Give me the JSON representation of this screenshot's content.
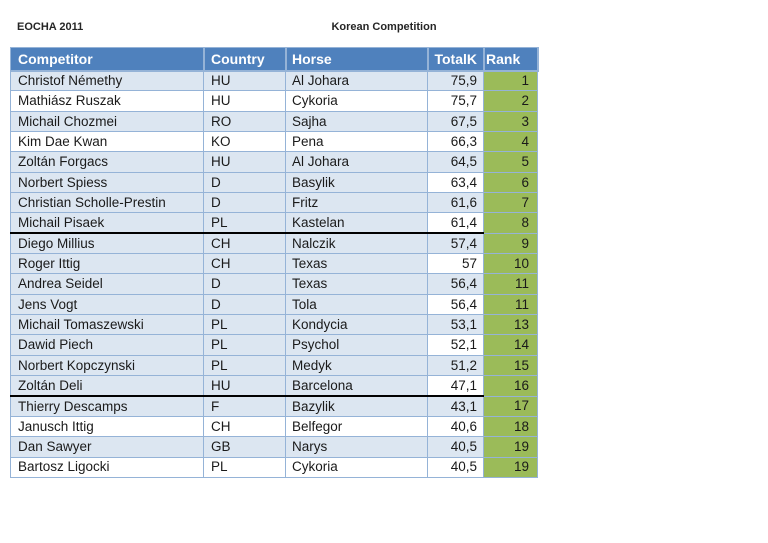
{
  "page": {
    "header_left": "EOCHA 2011",
    "title": "Korean Competition"
  },
  "colors": {
    "header_bg": "#4F81BD",
    "header_text": "#FFFFFF",
    "band_blue": "#DCE6F1",
    "band_white": "#FFFFFF",
    "rank_green": "#9BBB59",
    "grid_border": "#95B3D7",
    "divider_black": "#000000",
    "body_text": "#1A1A1A"
  },
  "table": {
    "columns": [
      {
        "key": "competitor",
        "label": "Competitor"
      },
      {
        "key": "country",
        "label": "Country"
      },
      {
        "key": "horse",
        "label": "Horse"
      },
      {
        "key": "total",
        "label": "TotalK"
      },
      {
        "key": "rank",
        "label": "Rank"
      }
    ],
    "rows": [
      {
        "competitor": "Christof Némethy",
        "country": "HU",
        "horse": "Al Johara",
        "total": "75,9",
        "rank": "1",
        "band": "blue",
        "total_band": "blue",
        "divider_after": false
      },
      {
        "competitor": "Mathiász Ruszak",
        "country": "HU",
        "horse": "Cykoria",
        "total": "75,7",
        "rank": "2",
        "band": "white",
        "total_band": "white",
        "divider_after": false
      },
      {
        "competitor": "Michail Chozmei",
        "country": "RO",
        "horse": "Sajha",
        "total": "67,5",
        "rank": "3",
        "band": "blue",
        "total_band": "blue",
        "divider_after": false
      },
      {
        "competitor": "Kim Dae Kwan",
        "country": "KO",
        "horse": "Pena",
        "total": "66,3",
        "rank": "4",
        "band": "white",
        "total_band": "white",
        "divider_after": false
      },
      {
        "competitor": "Zoltán Forgacs",
        "country": "HU",
        "horse": "Al Johara",
        "total": "64,5",
        "rank": "5",
        "band": "blue",
        "total_band": "blue",
        "divider_after": false
      },
      {
        "competitor": "Norbert Spiess",
        "country": "D",
        "horse": "Basylik",
        "total": "63,4",
        "rank": "6",
        "band": "blue",
        "total_band": "white",
        "divider_after": false
      },
      {
        "competitor": "Christian Scholle-Prestin",
        "country": "D",
        "horse": "Fritz",
        "total": "61,6",
        "rank": "7",
        "band": "blue",
        "total_band": "blue",
        "divider_after": false
      },
      {
        "competitor": "Michail Pisaek",
        "country": "PL",
        "horse": "Kastelan",
        "total": "61,4",
        "rank": "8",
        "band": "blue",
        "total_band": "white",
        "divider_after": true
      },
      {
        "competitor": "Diego Millius",
        "country": "CH",
        "horse": "Nalczik",
        "total": "57,4",
        "rank": "9",
        "band": "blue",
        "total_band": "blue",
        "divider_after": false
      },
      {
        "competitor": "Roger Ittig",
        "country": "CH",
        "horse": "Texas",
        "total": "57",
        "rank": "10",
        "band": "blue",
        "total_band": "white",
        "divider_after": false
      },
      {
        "competitor": "Andrea Seidel",
        "country": "D",
        "horse": "Texas",
        "total": "56,4",
        "rank": "11",
        "band": "blue",
        "total_band": "blue",
        "divider_after": false
      },
      {
        "competitor": "Jens Vogt",
        "country": "D",
        "horse": "Tola",
        "total": "56,4",
        "rank": "11",
        "band": "blue",
        "total_band": "white",
        "divider_after": false
      },
      {
        "competitor": "Michail Tomaszewski",
        "country": "PL",
        "horse": "Kondycia",
        "total": "53,1",
        "rank": "13",
        "band": "blue",
        "total_band": "blue",
        "divider_after": false
      },
      {
        "competitor": "Dawid Piech",
        "country": "PL",
        "horse": "Psychol",
        "total": "52,1",
        "rank": "14",
        "band": "blue",
        "total_band": "white",
        "divider_after": false
      },
      {
        "competitor": "Norbert Kopczynski",
        "country": "PL",
        "horse": "Medyk",
        "total": "51,2",
        "rank": "15",
        "band": "blue",
        "total_band": "blue",
        "divider_after": false
      },
      {
        "competitor": "Zoltán Deli",
        "country": "HU",
        "horse": "Barcelona",
        "total": "47,1",
        "rank": "16",
        "band": "blue",
        "total_band": "white",
        "divider_after": true
      },
      {
        "competitor": "Thierry Descamps",
        "country": "F",
        "horse": "Bazylik",
        "total": "43,1",
        "rank": "17",
        "band": "blue",
        "total_band": "blue",
        "divider_after": false
      },
      {
        "competitor": "Janusch Ittig",
        "country": "CH",
        "horse": "Belfegor",
        "total": "40,6",
        "rank": "18",
        "band": "white",
        "total_band": "white",
        "divider_after": false
      },
      {
        "competitor": "Dan Sawyer",
        "country": "GB",
        "horse": "Narys",
        "total": "40,5",
        "rank": "19",
        "band": "blue",
        "total_band": "blue",
        "divider_after": false
      },
      {
        "competitor": "Bartosz Ligocki",
        "country": "PL",
        "horse": "Cykoria",
        "total": "40,5",
        "rank": "19",
        "band": "white",
        "total_band": "white",
        "divider_after": false
      }
    ]
  }
}
